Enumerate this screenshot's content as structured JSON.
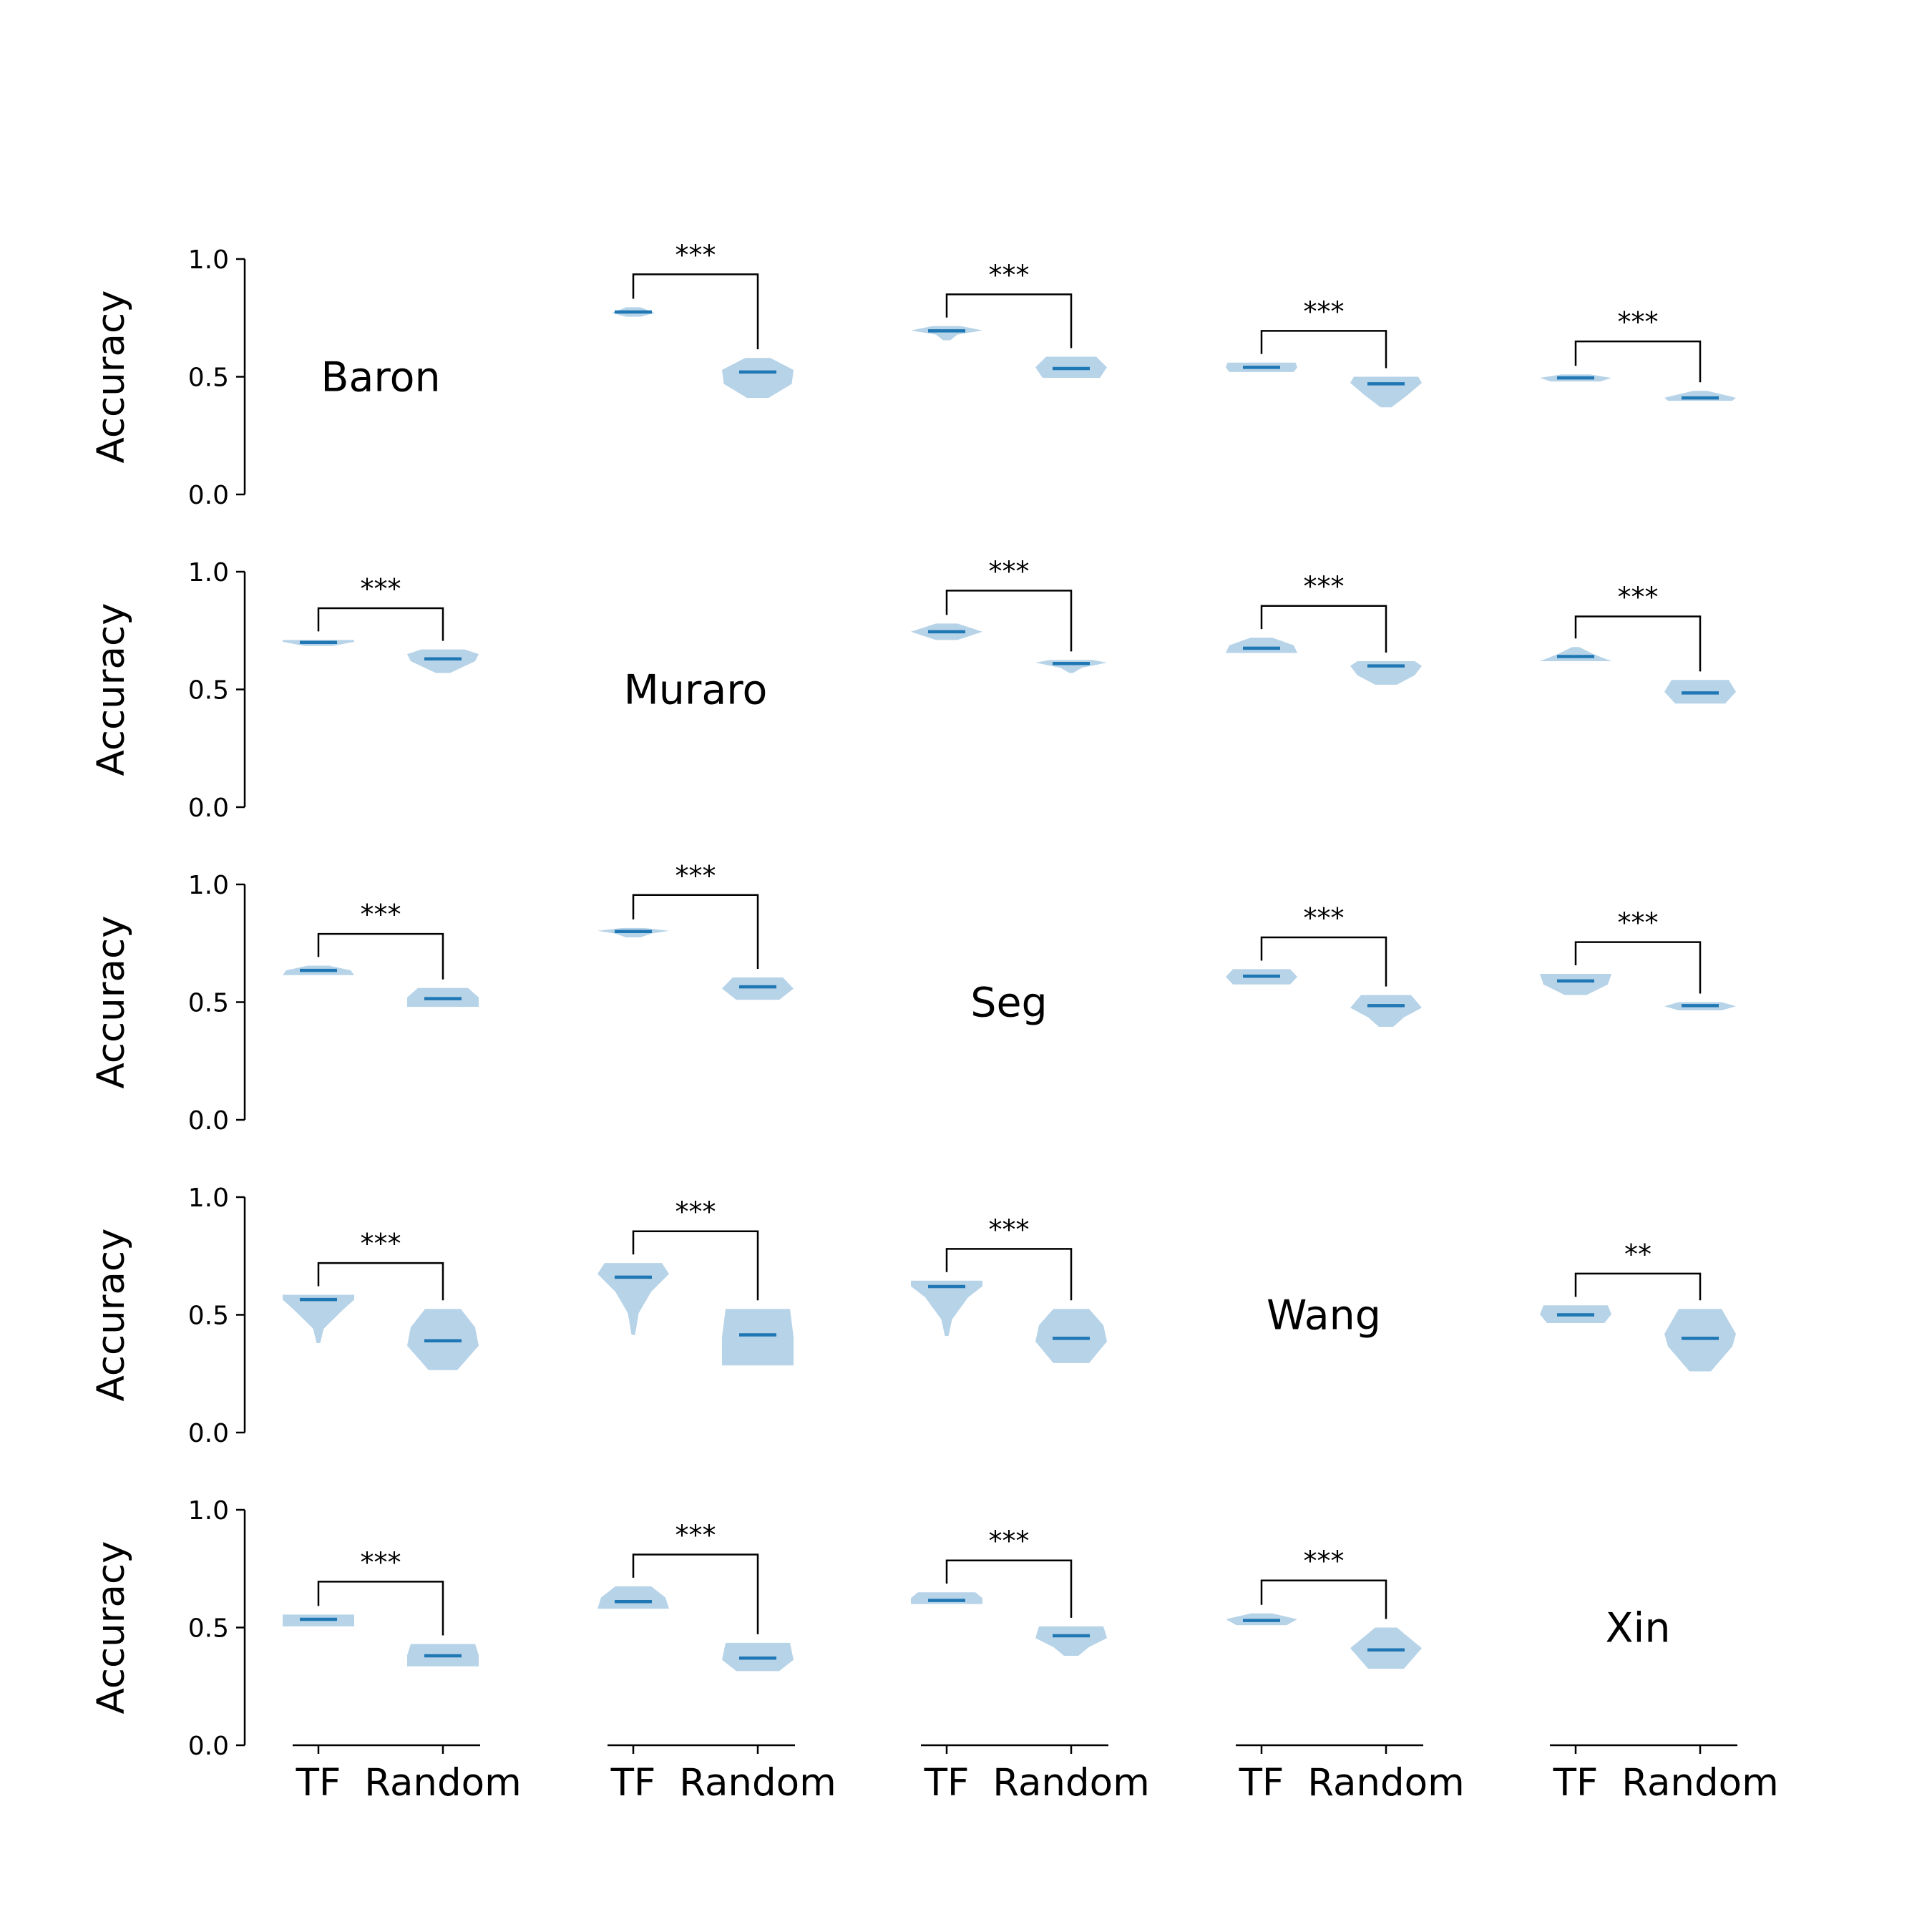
{
  "chart_data": {
    "type": "violin",
    "colors": {
      "violin_fill": "#b7d3e8",
      "median_line": "#1f77b4",
      "axis": "#000000"
    },
    "y_axis_label": "Accuracy",
    "y_ticks": [
      "0.0",
      "0.5",
      "1.0"
    ],
    "ylim": [
      0,
      1
    ],
    "x_categories": [
      "TF",
      "Random"
    ],
    "dataset_labels": [
      "Baron",
      "Muraro",
      "Seg",
      "Wang",
      "Xin"
    ],
    "panels": [
      {
        "row": 0,
        "col": 1,
        "tf": {
          "median": 0.775,
          "min": 0.755,
          "max": 0.795,
          "shape": [
            [
              0,
              0.2
            ],
            [
              0.4,
              0.6
            ],
            [
              1,
              0.2
            ]
          ]
        },
        "random": {
          "median": 0.52,
          "min": 0.41,
          "max": 0.58,
          "shape": [
            [
              0,
              0.3
            ],
            [
              0.35,
              0.95
            ],
            [
              0.7,
              1
            ],
            [
              1,
              0.35
            ]
          ]
        },
        "sig": "***",
        "bracket": 0.935
      },
      {
        "row": 0,
        "col": 2,
        "tf": {
          "median": 0.695,
          "min": 0.655,
          "max": 0.715,
          "shape": [
            [
              0,
              0.1
            ],
            [
              0.4,
              0.3
            ],
            [
              0.7,
              1
            ],
            [
              1,
              0.4
            ]
          ]
        },
        "random": {
          "median": 0.535,
          "min": 0.495,
          "max": 0.585,
          "shape": [
            [
              0,
              0.8
            ],
            [
              0.5,
              1
            ],
            [
              1,
              0.7
            ]
          ]
        },
        "sig": "***",
        "bracket": 0.85
      },
      {
        "row": 0,
        "col": 3,
        "tf": {
          "median": 0.54,
          "min": 0.52,
          "max": 0.56,
          "shape": [
            [
              0,
              0.9
            ],
            [
              0.5,
              1
            ],
            [
              1,
              0.95
            ]
          ]
        },
        "random": {
          "median": 0.47,
          "min": 0.37,
          "max": 0.5,
          "shape": [
            [
              0,
              0.15
            ],
            [
              0.4,
              0.6
            ],
            [
              0.8,
              1
            ],
            [
              1,
              0.9
            ]
          ]
        },
        "sig": "***",
        "bracket": 0.695
      },
      {
        "row": 0,
        "col": 4,
        "tf": {
          "median": 0.495,
          "min": 0.48,
          "max": 0.51,
          "shape": [
            [
              0,
              0.7
            ],
            [
              0.5,
              1
            ],
            [
              1,
              0.4
            ]
          ]
        },
        "random": {
          "median": 0.41,
          "min": 0.398,
          "max": 0.44,
          "shape": [
            [
              0,
              0.9
            ],
            [
              0.3,
              1
            ],
            [
              1,
              0.2
            ]
          ]
        },
        "sig": "***",
        "bracket": 0.65
      },
      {
        "row": 1,
        "col": 0,
        "tf": {
          "median": 0.7,
          "min": 0.685,
          "max": 0.71,
          "shape": [
            [
              0,
              0.4
            ],
            [
              0.7,
              1
            ],
            [
              1,
              1
            ]
          ]
        },
        "random": {
          "median": 0.63,
          "min": 0.57,
          "max": 0.67,
          "shape": [
            [
              0,
              0.2
            ],
            [
              0.5,
              0.9
            ],
            [
              0.8,
              1
            ],
            [
              1,
              0.6
            ]
          ]
        },
        "sig": "***",
        "bracket": 0.845
      },
      {
        "row": 1,
        "col": 2,
        "tf": {
          "median": 0.745,
          "min": 0.71,
          "max": 0.78,
          "shape": [
            [
              0,
              0.3
            ],
            [
              0.5,
              1
            ],
            [
              1,
              0.3
            ]
          ]
        },
        "random": {
          "median": 0.61,
          "min": 0.57,
          "max": 0.625,
          "shape": [
            [
              0,
              0.05
            ],
            [
              0.4,
              0.3
            ],
            [
              0.8,
              1
            ],
            [
              1,
              0.6
            ]
          ]
        },
        "sig": "***",
        "bracket": 0.92
      },
      {
        "row": 1,
        "col": 3,
        "tf": {
          "median": 0.675,
          "min": 0.655,
          "max": 0.72,
          "shape": [
            [
              0,
              1
            ],
            [
              0.5,
              0.9
            ],
            [
              1,
              0.3
            ]
          ]
        },
        "random": {
          "median": 0.6,
          "min": 0.52,
          "max": 0.62,
          "shape": [
            [
              0,
              0.3
            ],
            [
              0.4,
              0.8
            ],
            [
              0.8,
              1
            ],
            [
              1,
              0.8
            ]
          ]
        },
        "sig": "***",
        "bracket": 0.855
      },
      {
        "row": 1,
        "col": 4,
        "tf": {
          "median": 0.64,
          "min": 0.62,
          "max": 0.68,
          "shape": [
            [
              0,
              1
            ],
            [
              0.5,
              0.5
            ],
            [
              1,
              0.1
            ]
          ]
        },
        "random": {
          "median": 0.485,
          "min": 0.44,
          "max": 0.54,
          "shape": [
            [
              0,
              0.7
            ],
            [
              0.5,
              1
            ],
            [
              1,
              0.8
            ]
          ]
        },
        "sig": "***",
        "bracket": 0.81
      },
      {
        "row": 2,
        "col": 0,
        "tf": {
          "median": 0.635,
          "min": 0.615,
          "max": 0.655,
          "shape": [
            [
              0,
              1
            ],
            [
              0.5,
              0.9
            ],
            [
              1,
              0.3
            ]
          ]
        },
        "random": {
          "median": 0.515,
          "min": 0.48,
          "max": 0.56,
          "shape": [
            [
              0,
              1
            ],
            [
              0.5,
              1
            ],
            [
              1,
              0.7
            ]
          ]
        },
        "sig": "***",
        "bracket": 0.79
      },
      {
        "row": 2,
        "col": 1,
        "tf": {
          "median": 0.8,
          "min": 0.775,
          "max": 0.815,
          "shape": [
            [
              0,
              0.2
            ],
            [
              0.4,
              0.5
            ],
            [
              0.7,
              1
            ],
            [
              1,
              0.3
            ]
          ]
        },
        "random": {
          "median": 0.565,
          "min": 0.51,
          "max": 0.605,
          "shape": [
            [
              0,
              0.6
            ],
            [
              0.5,
              1
            ],
            [
              1,
              0.7
            ]
          ]
        },
        "sig": "***",
        "bracket": 0.955
      },
      {
        "row": 2,
        "col": 3,
        "tf": {
          "median": 0.61,
          "min": 0.575,
          "max": 0.64,
          "shape": [
            [
              0,
              0.8
            ],
            [
              0.5,
              1
            ],
            [
              1,
              0.8
            ]
          ]
        },
        "random": {
          "median": 0.485,
          "min": 0.395,
          "max": 0.53,
          "shape": [
            [
              0,
              0.2
            ],
            [
              0.3,
              0.5
            ],
            [
              0.6,
              1
            ],
            [
              1,
              0.7
            ]
          ]
        },
        "sig": "***",
        "bracket": 0.775
      },
      {
        "row": 2,
        "col": 4,
        "tf": {
          "median": 0.59,
          "min": 0.53,
          "max": 0.62,
          "shape": [
            [
              0,
              0.3
            ],
            [
              0.5,
              0.9
            ],
            [
              1,
              1
            ]
          ]
        },
        "random": {
          "median": 0.485,
          "min": 0.465,
          "max": 0.5,
          "shape": [
            [
              0,
              0.6
            ],
            [
              0.5,
              1
            ],
            [
              1,
              0.6
            ]
          ]
        },
        "sig": "***",
        "bracket": 0.755
      },
      {
        "row": 3,
        "col": 0,
        "tf": {
          "median": 0.565,
          "min": 0.38,
          "max": 0.585,
          "shape": [
            [
              0,
              0.05
            ],
            [
              0.3,
              0.15
            ],
            [
              0.7,
              0.7
            ],
            [
              0.9,
              1
            ],
            [
              1,
              1
            ]
          ]
        },
        "random": {
          "median": 0.39,
          "min": 0.265,
          "max": 0.525,
          "shape": [
            [
              0,
              0.4
            ],
            [
              0.4,
              1
            ],
            [
              0.7,
              0.9
            ],
            [
              1,
              0.5
            ]
          ]
        },
        "sig": "***",
        "bracket": 0.72
      },
      {
        "row": 3,
        "col": 1,
        "tf": {
          "median": 0.66,
          "min": 0.415,
          "max": 0.72,
          "shape": [
            [
              0,
              0.05
            ],
            [
              0.3,
              0.15
            ],
            [
              0.6,
              0.5
            ],
            [
              0.85,
              1
            ],
            [
              1,
              0.8
            ]
          ]
        },
        "random": {
          "median": 0.415,
          "min": 0.285,
          "max": 0.525,
          "shape": [
            [
              0,
              1
            ],
            [
              0.5,
              1
            ],
            [
              1,
              0.9
            ]
          ]
        },
        "sig": "***",
        "bracket": 0.855
      },
      {
        "row": 3,
        "col": 2,
        "tf": {
          "median": 0.62,
          "min": 0.41,
          "max": 0.645,
          "shape": [
            [
              0,
              0.05
            ],
            [
              0.3,
              0.15
            ],
            [
              0.7,
              0.6
            ],
            [
              0.9,
              1
            ],
            [
              1,
              1
            ]
          ]
        },
        "random": {
          "median": 0.4,
          "min": 0.295,
          "max": 0.525,
          "shape": [
            [
              0,
              0.5
            ],
            [
              0.4,
              1
            ],
            [
              0.7,
              0.9
            ],
            [
              1,
              0.5
            ]
          ]
        },
        "sig": "***",
        "bracket": 0.78
      },
      {
        "row": 3,
        "col": 4,
        "tf": {
          "median": 0.5,
          "min": 0.465,
          "max": 0.54,
          "shape": [
            [
              0,
              0.8
            ],
            [
              0.5,
              1
            ],
            [
              1,
              0.9
            ]
          ]
        },
        "random": {
          "median": 0.4,
          "min": 0.26,
          "max": 0.525,
          "shape": [
            [
              0,
              0.3
            ],
            [
              0.4,
              0.9
            ],
            [
              0.6,
              1
            ],
            [
              1,
              0.6
            ]
          ]
        },
        "sig": "**",
        "bracket": 0.675
      },
      {
        "row": 4,
        "col": 0,
        "tf": {
          "median": 0.535,
          "min": 0.505,
          "max": 0.555,
          "shape": [
            [
              0,
              1
            ],
            [
              0.5,
              1
            ],
            [
              1,
              1
            ]
          ]
        },
        "random": {
          "median": 0.38,
          "min": 0.335,
          "max": 0.43,
          "shape": [
            [
              0,
              1
            ],
            [
              0.5,
              1
            ],
            [
              1,
              0.9
            ]
          ]
        },
        "sig": "***",
        "bracket": 0.695
      },
      {
        "row": 4,
        "col": 1,
        "tf": {
          "median": 0.61,
          "min": 0.58,
          "max": 0.675,
          "shape": [
            [
              0,
              1
            ],
            [
              0.5,
              0.9
            ],
            [
              1,
              0.5
            ]
          ]
        },
        "random": {
          "median": 0.37,
          "min": 0.315,
          "max": 0.435,
          "shape": [
            [
              0,
              0.6
            ],
            [
              0.4,
              1
            ],
            [
              1,
              0.9
            ]
          ]
        },
        "sig": "***",
        "bracket": 0.81
      },
      {
        "row": 4,
        "col": 2,
        "tf": {
          "median": 0.615,
          "min": 0.6,
          "max": 0.65,
          "shape": [
            [
              0,
              1
            ],
            [
              0.5,
              1
            ],
            [
              1,
              0.8
            ]
          ]
        },
        "random": {
          "median": 0.465,
          "min": 0.38,
          "max": 0.505,
          "shape": [
            [
              0,
              0.2
            ],
            [
              0.3,
              0.5
            ],
            [
              0.6,
              1
            ],
            [
              1,
              0.9
            ]
          ]
        },
        "sig": "***",
        "bracket": 0.785
      },
      {
        "row": 4,
        "col": 3,
        "tf": {
          "median": 0.53,
          "min": 0.51,
          "max": 0.56,
          "shape": [
            [
              0,
              0.7
            ],
            [
              0.5,
              1
            ],
            [
              1,
              0.3
            ]
          ]
        },
        "random": {
          "median": 0.405,
          "min": 0.325,
          "max": 0.5,
          "shape": [
            [
              0,
              0.5
            ],
            [
              0.5,
              1
            ],
            [
              1,
              0.3
            ]
          ]
        },
        "sig": "***",
        "bracket": 0.7
      }
    ]
  }
}
